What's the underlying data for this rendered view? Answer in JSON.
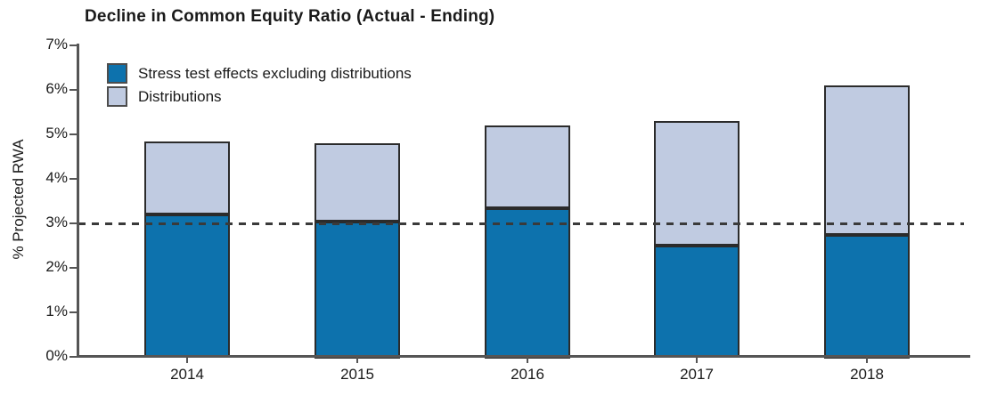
{
  "chart_data": {
    "type": "bar",
    "stacked": true,
    "title": "Decline in Common Equity Ratio (Actual - Ending)",
    "ylabel": "% Projected RWA",
    "xlabel": "",
    "categories": [
      "2014",
      "2015",
      "2016",
      "2017",
      "2018"
    ],
    "series": [
      {
        "name": "Stress test effects excluding distributions",
        "color": "#0d72ad",
        "values": [
          3.2,
          3.05,
          3.35,
          2.5,
          2.75
        ]
      },
      {
        "name": "Distributions",
        "color": "#c0cbe1",
        "values": [
          1.65,
          1.75,
          1.85,
          2.8,
          3.35
        ]
      }
    ],
    "stack_totals": [
      4.85,
      4.8,
      5.2,
      5.3,
      6.1
    ],
    "ylim": [
      0,
      7
    ],
    "ytick_labels": [
      "0%",
      "1%",
      "2%",
      "3%",
      "4%",
      "5%",
      "6%",
      "7%"
    ],
    "reference_line": {
      "value": 3,
      "style": "dashed",
      "color": "#3a3a3a"
    },
    "legend_position": "top-left-inside",
    "grid": false,
    "bar_border_color": "#2b2b2b",
    "axis_color": "#555555",
    "text_color": "#1a1a1a"
  }
}
